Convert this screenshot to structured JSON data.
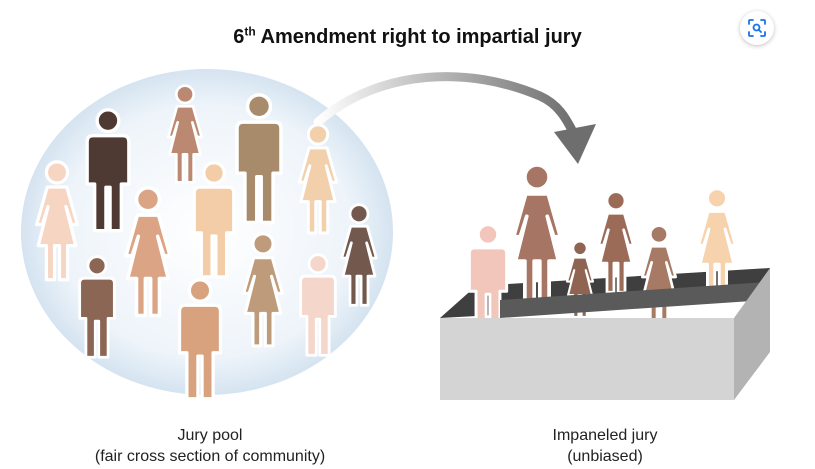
{
  "title": {
    "prefix": "6",
    "superscript": "th",
    "text": " Amendment right to impartial jury"
  },
  "pool_label": {
    "line1": "Jury pool",
    "line2": "(fair cross section of community)"
  },
  "jury_label": {
    "line1": "Impaneled jury",
    "line2": "(unbiased)"
  },
  "lens_button": {
    "icon": "visual-search-icon"
  },
  "colors": {
    "bubble": "#d7e6f2",
    "arrow": "#7a7a7a",
    "box_top": "#3f3f3f",
    "box_front": "#d4d4d4",
    "box_side": "#b5b5b5"
  }
}
